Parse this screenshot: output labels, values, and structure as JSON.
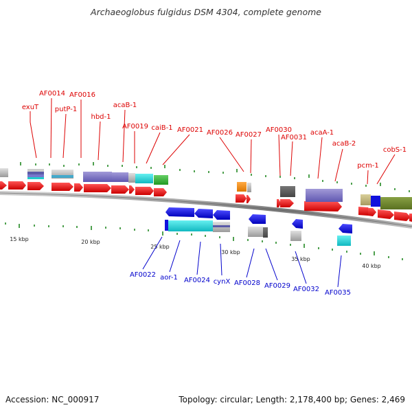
{
  "title": "Archaeoglobus fulgidus DSM 4304, complete genome",
  "footer": {
    "accession": "Accession: NC_000917",
    "summary": "Topology: circular; Length: 2,178,400 bp; Genes: 2,469"
  },
  "colors": {
    "forward_label": "#dd0000",
    "reverse_label": "#0000cc",
    "tick": "#228822",
    "backbone": "#777777"
  },
  "scale_labels": [
    "15 kbp",
    "20 kbp",
    "25 kbp",
    "30 kbp",
    "35 kbp",
    "40 kbp"
  ],
  "forward_genes": [
    "exuT",
    "AF0014",
    "putP-1",
    "AF0016",
    "hbd-1",
    "acaB-1",
    "AF0019",
    "caiB-1",
    "AF0021",
    "AF0026",
    "AF0027",
    "AF0030",
    "AF0031",
    "acaA-1",
    "acaB-2",
    "pcm-1",
    "cobS-1"
  ],
  "reverse_genes": [
    "AF0022",
    "aor-1",
    "AF0024",
    "cynX",
    "AF0028",
    "AF0029",
    "AF0032",
    "AF0035"
  ]
}
